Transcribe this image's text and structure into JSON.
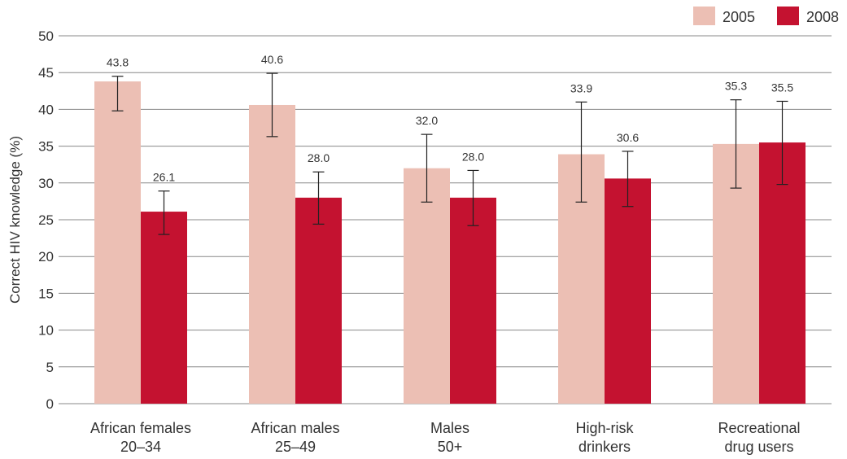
{
  "chart_data": {
    "type": "bar",
    "ylabel": "Correct HIV knowledge (%)",
    "xlabel": "",
    "ylim": [
      0,
      50
    ],
    "yticks": [
      0,
      5,
      10,
      15,
      20,
      25,
      30,
      35,
      40,
      45,
      50
    ],
    "grid": true,
    "legend_position": "top-right",
    "categories": [
      [
        "African females",
        "20–34"
      ],
      [
        "African males",
        "25–49"
      ],
      [
        "Males",
        "50+"
      ],
      [
        "High-risk",
        "drinkers"
      ],
      [
        "Recreational",
        "drug users"
      ]
    ],
    "series": [
      {
        "name": "2005",
        "color": "#ecbfb4",
        "values": [
          43.8,
          40.6,
          32.0,
          33.9,
          35.3
        ],
        "labels": [
          "43.8",
          "40.6",
          "32.0",
          "33.9",
          "35.3"
        ],
        "error_low": [
          39.8,
          36.3,
          27.4,
          27.4,
          29.3
        ],
        "error_high": [
          44.5,
          44.9,
          36.6,
          41.0,
          41.3
        ]
      },
      {
        "name": "2008",
        "color": "#c41230",
        "values": [
          26.1,
          28.0,
          28.0,
          30.6,
          35.5
        ],
        "labels": [
          "26.1",
          "28.0",
          "28.0",
          "30.6",
          "35.5"
        ],
        "error_low": [
          23.0,
          24.4,
          24.2,
          26.8,
          29.8
        ],
        "error_high": [
          28.9,
          31.5,
          31.7,
          34.3,
          41.1
        ]
      }
    ]
  }
}
